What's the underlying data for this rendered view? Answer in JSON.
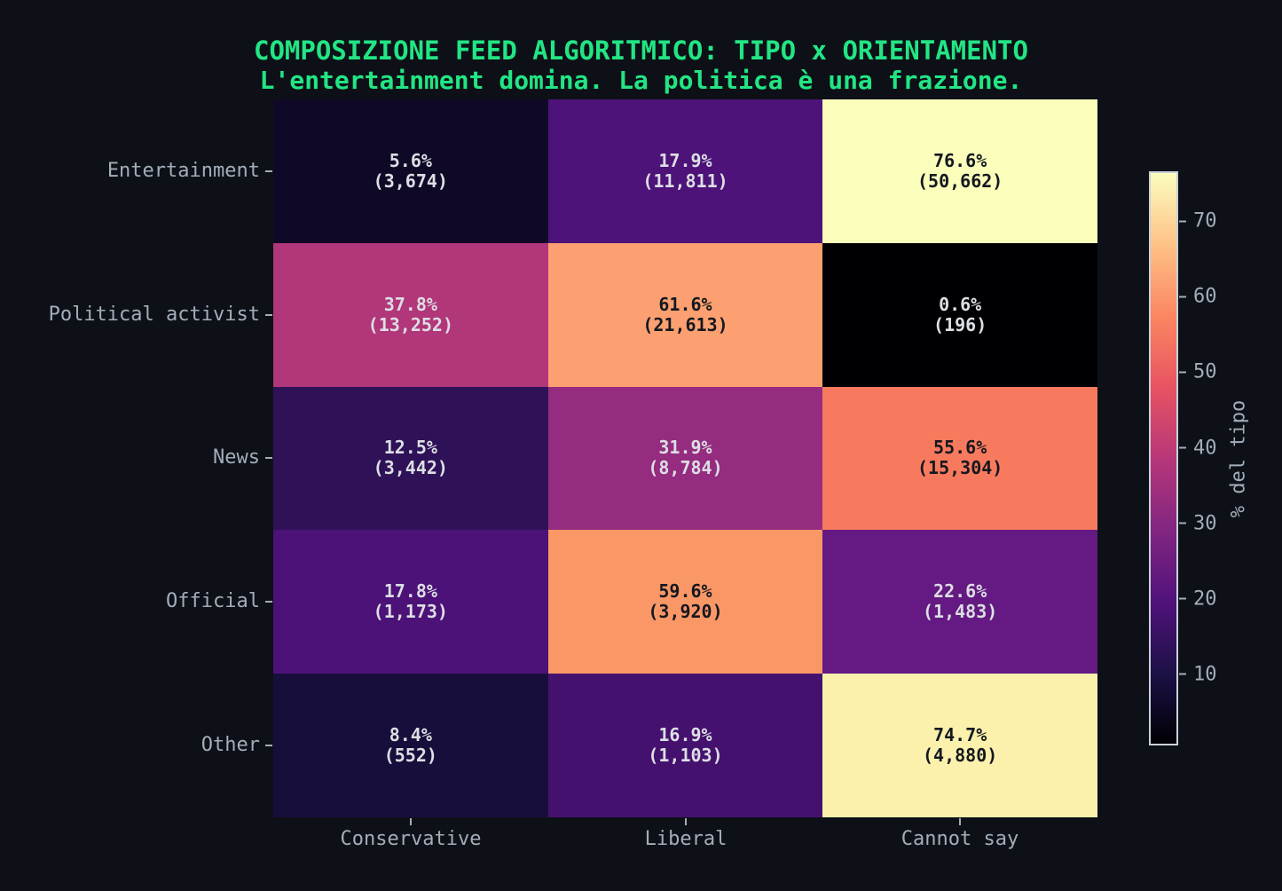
{
  "chart_data": {
    "type": "heatmap",
    "title": "COMPOSIZIONE FEED ALGORITMICO: TIPO x ORIENTAMENTO",
    "subtitle": "L'entertainment domina. La politica è una frazione.",
    "rows": [
      "Entertainment",
      "Political activist",
      "News",
      "Official",
      "Other"
    ],
    "columns": [
      "Conservative",
      "Liberal",
      "Cannot say"
    ],
    "values_pct": [
      [
        5.6,
        17.9,
        76.6
      ],
      [
        37.8,
        61.6,
        0.6
      ],
      [
        12.5,
        31.9,
        55.6
      ],
      [
        17.8,
        59.6,
        22.6
      ],
      [
        8.4,
        16.9,
        74.7
      ]
    ],
    "counts": [
      [
        3674,
        11811,
        50662
      ],
      [
        13252,
        21613,
        196
      ],
      [
        3442,
        8784,
        15304
      ],
      [
        1173,
        3920,
        1483
      ],
      [
        552,
        1103,
        4880
      ]
    ],
    "cells": [
      {
        "pct_label": "5.6%",
        "count_label": "(3,674)",
        "bg": "#0f0927",
        "fg": "#dcdfe4"
      },
      {
        "pct_label": "17.9%",
        "count_label": "(11,811)",
        "bg": "#4d1379",
        "fg": "#dcdfe4"
      },
      {
        "pct_label": "76.6%",
        "count_label": "(50,662)",
        "bg": "#fbfdbb",
        "fg": "#14181f"
      },
      {
        "pct_label": "37.8%",
        "count_label": "(13,252)",
        "bg": "#b2367a",
        "fg": "#dcdfe4"
      },
      {
        "pct_label": "61.6%",
        "count_label": "(21,613)",
        "bg": "#fca071",
        "fg": "#14181f"
      },
      {
        "pct_label": "0.6%",
        "count_label": "(196)",
        "bg": "#000004",
        "fg": "#dcdfe4"
      },
      {
        "pct_label": "12.5%",
        "count_label": "(3,442)",
        "bg": "#2e1157",
        "fg": "#dcdfe4"
      },
      {
        "pct_label": "31.9%",
        "count_label": "(8,784)",
        "bg": "#952c80",
        "fg": "#dcdfe4"
      },
      {
        "pct_label": "55.6%",
        "count_label": "(15,304)",
        "bg": "#f87a5e",
        "fg": "#14181f"
      },
      {
        "pct_label": "17.8%",
        "count_label": "(1,173)",
        "bg": "#4c1278",
        "fg": "#dcdfe4"
      },
      {
        "pct_label": "59.6%",
        "count_label": "(3,920)",
        "bg": "#fa9766",
        "fg": "#14181f"
      },
      {
        "pct_label": "22.6%",
        "count_label": "(1,483)",
        "bg": "#641a82",
        "fg": "#dcdfe4"
      },
      {
        "pct_label": "8.4%",
        "count_label": "(552)",
        "bg": "#180e3b",
        "fg": "#dcdfe4"
      },
      {
        "pct_label": "16.9%",
        "count_label": "(1,103)",
        "bg": "#45116f",
        "fg": "#dcdfe4"
      },
      {
        "pct_label": "74.7%",
        "count_label": "(4,880)",
        "bg": "#fbf1ad",
        "fg": "#14181f"
      }
    ],
    "colorbar": {
      "label": "% del tipo",
      "ticks": [
        10,
        20,
        30,
        40,
        50,
        60,
        70
      ],
      "vmin": 0.6,
      "vmax": 76.6,
      "colormap": "magma",
      "gradient_stops": [
        "#000004",
        "#1d1147",
        "#51127c",
        "#822681",
        "#b73779",
        "#e85362",
        "#fb8761",
        "#fec287",
        "#fcfdbf"
      ],
      "position": "right"
    },
    "grid": false,
    "value_format": "percent_with_count"
  },
  "colors": {
    "background": "#0d1117",
    "title_green": "#22e584",
    "axis_label_gray": "#a3adba",
    "cell_text_light": "#dcdfe4",
    "cell_text_dark": "#14181f",
    "colorbar_outline": "#c9d0d9"
  }
}
